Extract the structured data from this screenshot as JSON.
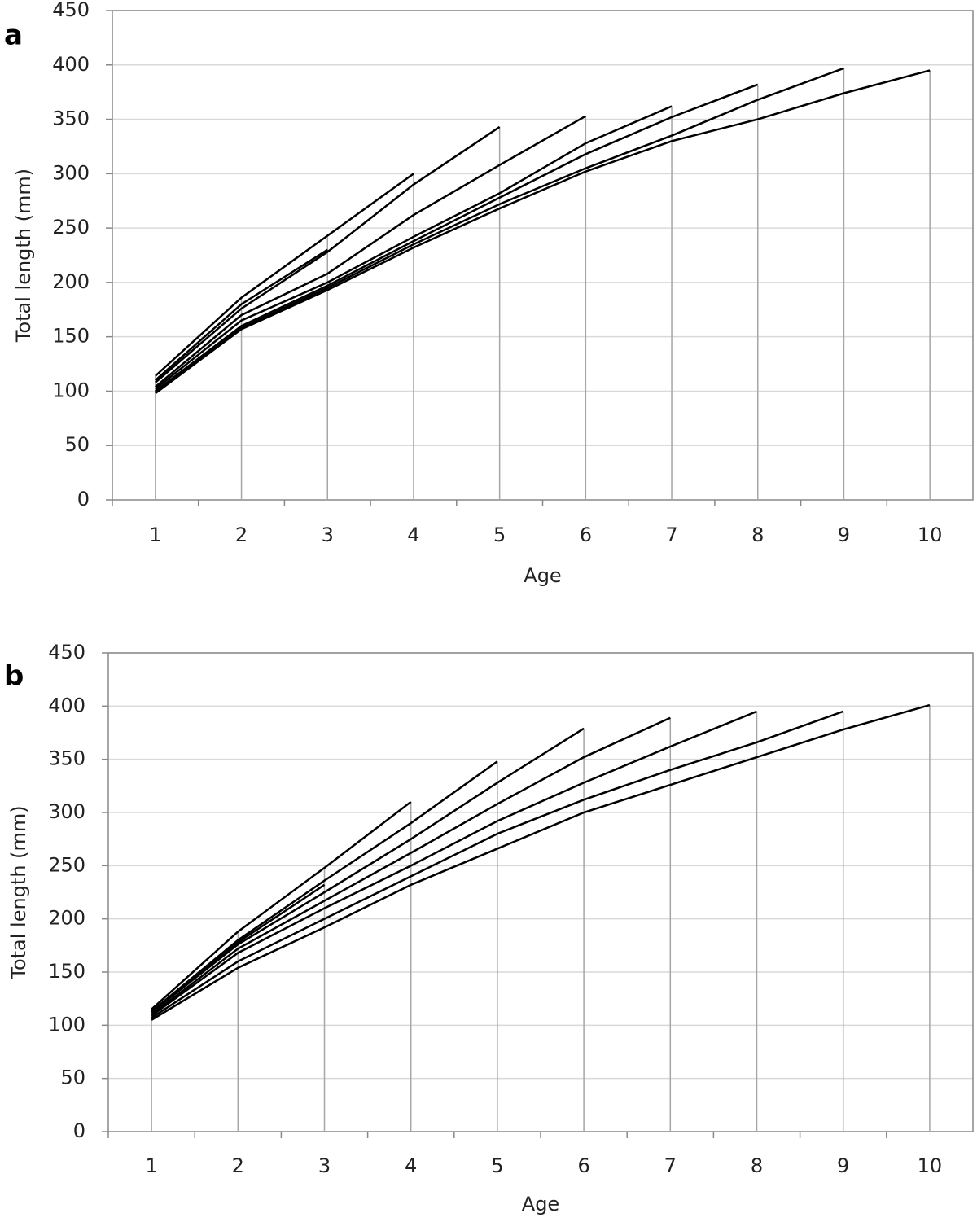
{
  "chart_data": [
    {
      "type": "line",
      "label": "a",
      "xlabel": "Age",
      "ylabel": "Total length (mm)",
      "categories": [
        1,
        2,
        3,
        4,
        5,
        6,
        7,
        8,
        9,
        10
      ],
      "ylim": [
        0,
        450
      ],
      "yticks": [
        0,
        50,
        100,
        150,
        200,
        250,
        300,
        350,
        400,
        450
      ],
      "grid": true,
      "drop_lines": true,
      "grid_color": "#d9d9d9",
      "drop_color": "#a6a6a6",
      "series": [
        {
          "color": "#000000",
          "values": [
            110,
            180,
            230,
            null,
            null,
            null,
            null,
            null,
            null,
            null
          ]
        },
        {
          "color": "#000000",
          "values": [
            114,
            186,
            243,
            300,
            null,
            null,
            null,
            null,
            null,
            null
          ]
        },
        {
          "color": "#000000",
          "values": [
            108,
            176,
            228,
            290,
            343,
            null,
            null,
            null,
            null,
            null
          ]
        },
        {
          "color": "#000000",
          "values": [
            104,
            170,
            208,
            262,
            308,
            353,
            null,
            null,
            null,
            null
          ]
        },
        {
          "color": "#000000",
          "values": [
            102,
            165,
            200,
            242,
            282,
            328,
            362,
            null,
            null,
            null
          ]
        },
        {
          "color": "#000000",
          "values": [
            100,
            160,
            197,
            238,
            278,
            318,
            352,
            382,
            null,
            null
          ]
        },
        {
          "color": "#000000",
          "values": [
            99,
            158,
            195,
            235,
            272,
            305,
            335,
            368,
            397,
            null
          ]
        },
        {
          "color": "#000000",
          "values": [
            98,
            157,
            193,
            232,
            268,
            302,
            330,
            350,
            374,
            395
          ]
        }
      ]
    },
    {
      "type": "line",
      "label": "b",
      "xlabel": "Age",
      "ylabel": "Total length (mm)",
      "categories": [
        1,
        2,
        3,
        4,
        5,
        6,
        7,
        8,
        9,
        10
      ],
      "ylim": [
        0,
        450
      ],
      "yticks": [
        0,
        50,
        100,
        150,
        200,
        250,
        300,
        350,
        400,
        450
      ],
      "grid": true,
      "drop_lines": true,
      "grid_color": "#d9d9d9",
      "drop_color": "#a6a6a6",
      "series": [
        {
          "color": "#000000",
          "values": [
            112,
            178,
            232,
            null,
            null,
            null,
            null,
            null,
            null,
            null
          ]
        },
        {
          "color": "#000000",
          "values": [
            115,
            188,
            248,
            310,
            null,
            null,
            null,
            null,
            null,
            null
          ]
        },
        {
          "color": "#000000",
          "values": [
            113,
            180,
            236,
            290,
            348,
            null,
            null,
            null,
            null,
            null
          ]
        },
        {
          "color": "#000000",
          "values": [
            112,
            176,
            225,
            275,
            328,
            379,
            null,
            null,
            null,
            null
          ]
        },
        {
          "color": "#000000",
          "values": [
            110,
            172,
            217,
            262,
            308,
            352,
            389,
            null,
            null,
            null
          ]
        },
        {
          "color": "#000000",
          "values": [
            109,
            168,
            210,
            250,
            292,
            328,
            362,
            395,
            null,
            null
          ]
        },
        {
          "color": "#000000",
          "values": [
            107,
            160,
            200,
            240,
            280,
            312,
            340,
            366,
            395,
            null
          ]
        },
        {
          "color": "#000000",
          "values": [
            105,
            154,
            192,
            232,
            266,
            300,
            326,
            352,
            378,
            401
          ]
        }
      ]
    }
  ]
}
